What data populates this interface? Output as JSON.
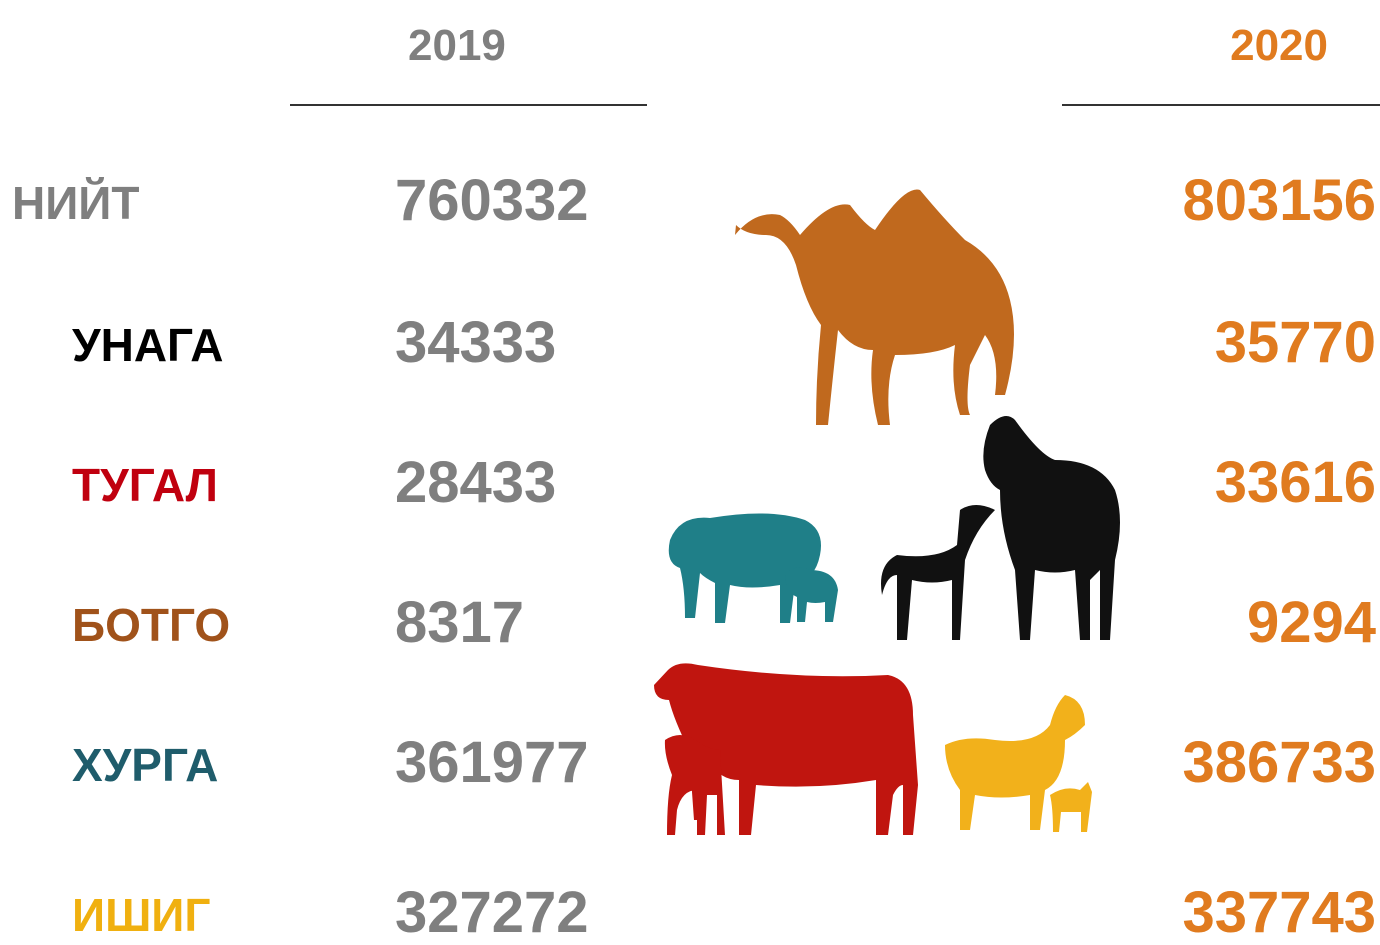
{
  "header": {
    "year1": "2019",
    "year2": "2020"
  },
  "table": {
    "rows": [
      [
        "НИЙТ",
        760332,
        803156
      ],
      [
        "УНАГА",
        34333,
        35770
      ],
      [
        "ТУГАЛ",
        28433,
        33616
      ],
      [
        "БОТГО",
        8317,
        9294
      ],
      [
        "ХУРГА",
        361977,
        386733
      ],
      [
        "ИШИГ",
        327272,
        337743
      ]
    ]
  }
}
